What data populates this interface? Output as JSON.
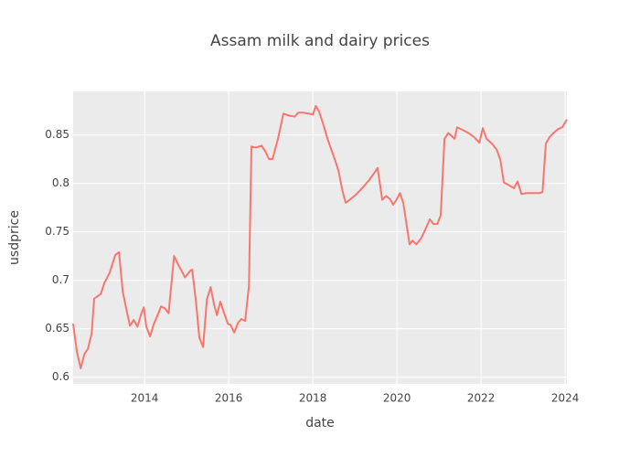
{
  "chart_data": {
    "type": "line",
    "title": "Assam milk and dairy prices",
    "x_label": "date",
    "y_label": "usdprice",
    "xlim": [
      2012.3,
      2024.04
    ],
    "ylim": [
      0.593,
      0.895
    ],
    "xticks": [
      2014,
      2016,
      2018,
      2020,
      2022,
      2024
    ],
    "yticks": [
      0.6,
      0.65,
      0.7,
      0.75,
      0.8,
      0.85
    ],
    "grid": true,
    "background": "#ebebeb",
    "x": [
      2012.3,
      2012.39,
      2012.48,
      2012.57,
      2012.65,
      2012.74,
      2012.8,
      2012.96,
      2013.04,
      2013.17,
      2013.3,
      2013.39,
      2013.48,
      2013.57,
      2013.65,
      2013.74,
      2013.83,
      2013.91,
      2013.98,
      2014.04,
      2014.13,
      2014.22,
      2014.3,
      2014.39,
      2014.48,
      2014.57,
      2014.7,
      2014.8,
      2014.96,
      2015.09,
      2015.13,
      2015.22,
      2015.3,
      2015.39,
      2015.48,
      2015.57,
      2015.65,
      2015.72,
      2015.8,
      2015.89,
      2015.98,
      2016.04,
      2016.13,
      2016.22,
      2016.3,
      2016.39,
      2016.48,
      2016.54,
      2016.65,
      2016.78,
      2016.87,
      2016.96,
      2017.04,
      2017.17,
      2017.3,
      2017.43,
      2017.57,
      2017.65,
      2017.78,
      2017.91,
      2018.0,
      2018.07,
      2018.15,
      2018.24,
      2018.35,
      2018.43,
      2018.52,
      2018.61,
      2018.7,
      2018.78,
      2018.87,
      2018.96,
      2019.04,
      2019.17,
      2019.33,
      2019.43,
      2019.54,
      2019.65,
      2019.74,
      2019.83,
      2019.91,
      2020.0,
      2020.07,
      2020.15,
      2020.3,
      2020.37,
      2020.46,
      2020.57,
      2020.65,
      2020.78,
      2020.87,
      2020.96,
      2021.04,
      2021.13,
      2021.22,
      2021.3,
      2021.37,
      2021.43,
      2021.57,
      2021.7,
      2021.83,
      2021.96,
      2022.04,
      2022.13,
      2022.26,
      2022.37,
      2022.46,
      2022.54,
      2022.67,
      2022.78,
      2022.87,
      2022.96,
      2023.09,
      2023.24,
      2023.39,
      2023.46,
      2023.54,
      2023.63,
      2023.72,
      2023.83,
      2023.93,
      2024.04
    ],
    "series": [
      {
        "name": "usdprice",
        "color": "#f8766d",
        "values": [
          0.655,
          0.626,
          0.609,
          0.624,
          0.629,
          0.645,
          0.681,
          0.686,
          0.697,
          0.708,
          0.726,
          0.729,
          0.688,
          0.669,
          0.653,
          0.659,
          0.652,
          0.664,
          0.672,
          0.652,
          0.642,
          0.655,
          0.663,
          0.673,
          0.671,
          0.666,
          0.725,
          0.716,
          0.703,
          0.71,
          0.711,
          0.678,
          0.641,
          0.631,
          0.68,
          0.693,
          0.675,
          0.664,
          0.678,
          0.666,
          0.655,
          0.654,
          0.646,
          0.656,
          0.66,
          0.658,
          0.694,
          0.838,
          0.837,
          0.839,
          0.833,
          0.825,
          0.825,
          0.846,
          0.872,
          0.87,
          0.869,
          0.873,
          0.873,
          0.872,
          0.871,
          0.88,
          0.874,
          0.862,
          0.846,
          0.836,
          0.825,
          0.813,
          0.793,
          0.78,
          0.783,
          0.786,
          0.789,
          0.795,
          0.803,
          0.809,
          0.816,
          0.783,
          0.787,
          0.784,
          0.778,
          0.784,
          0.79,
          0.78,
          0.737,
          0.741,
          0.737,
          0.743,
          0.75,
          0.763,
          0.758,
          0.758,
          0.767,
          0.846,
          0.852,
          0.849,
          0.846,
          0.858,
          0.855,
          0.852,
          0.848,
          0.842,
          0.857,
          0.846,
          0.841,
          0.835,
          0.824,
          0.801,
          0.798,
          0.795,
          0.802,
          0.789,
          0.79,
          0.79,
          0.79,
          0.791,
          0.841,
          0.848,
          0.852,
          0.856,
          0.858,
          0.866
        ]
      }
    ]
  }
}
